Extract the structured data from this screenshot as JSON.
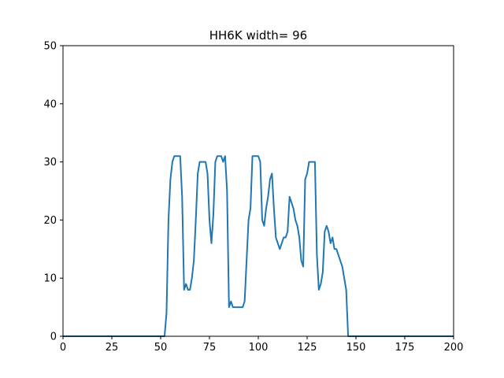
{
  "chart_data": {
    "type": "line",
    "title": "HH6K width= 96",
    "xlabel": "",
    "ylabel": "",
    "xlim": [
      0,
      200
    ],
    "ylim": [
      0,
      50
    ],
    "xticks": [
      0,
      25,
      50,
      75,
      100,
      125,
      150,
      175,
      200
    ],
    "yticks": [
      0,
      10,
      20,
      30,
      40,
      50
    ],
    "grid": false,
    "series_color": "#1f77b4",
    "series": [
      {
        "x": [
          0,
          52,
          53,
          54,
          55,
          56,
          57,
          58,
          59,
          60,
          61,
          62,
          63,
          64,
          65,
          66,
          67,
          68,
          69,
          70,
          71,
          72,
          73,
          74,
          75,
          76,
          77,
          78,
          79,
          80,
          81,
          82,
          83,
          84,
          85,
          86,
          87,
          88,
          89,
          90,
          91,
          92,
          93,
          94,
          95,
          96,
          97,
          98,
          99,
          100,
          101,
          102,
          103,
          104,
          105,
          106,
          107,
          108,
          109,
          110,
          111,
          112,
          113,
          114,
          115,
          116,
          117,
          118,
          119,
          120,
          121,
          122,
          123,
          124,
          125,
          126,
          127,
          128,
          129,
          130,
          131,
          132,
          133,
          134,
          135,
          136,
          137,
          138,
          139,
          140,
          141,
          142,
          143,
          144,
          145,
          146,
          147,
          148,
          200
        ],
        "y": [
          0,
          0,
          4,
          20,
          27,
          30,
          31,
          31,
          31,
          31,
          24,
          8,
          9,
          8,
          8,
          10,
          13,
          20,
          28,
          30,
          30,
          30,
          30,
          28,
          20,
          16,
          21,
          30,
          31,
          31,
          31,
          30,
          31,
          25,
          5,
          6,
          5,
          5,
          5,
          5,
          5,
          5,
          6,
          13,
          20,
          22,
          31,
          31,
          31,
          31,
          30,
          20,
          19,
          22,
          24,
          27,
          28,
          22,
          17,
          16,
          15,
          16,
          17,
          17,
          18,
          24,
          23,
          22,
          20,
          19,
          17,
          13,
          12,
          27,
          28,
          30,
          30,
          30,
          30,
          14,
          8,
          9,
          11,
          18,
          19,
          18,
          16,
          17,
          15,
          15,
          14,
          13,
          12,
          10,
          8,
          0,
          0,
          0,
          0
        ]
      }
    ]
  }
}
